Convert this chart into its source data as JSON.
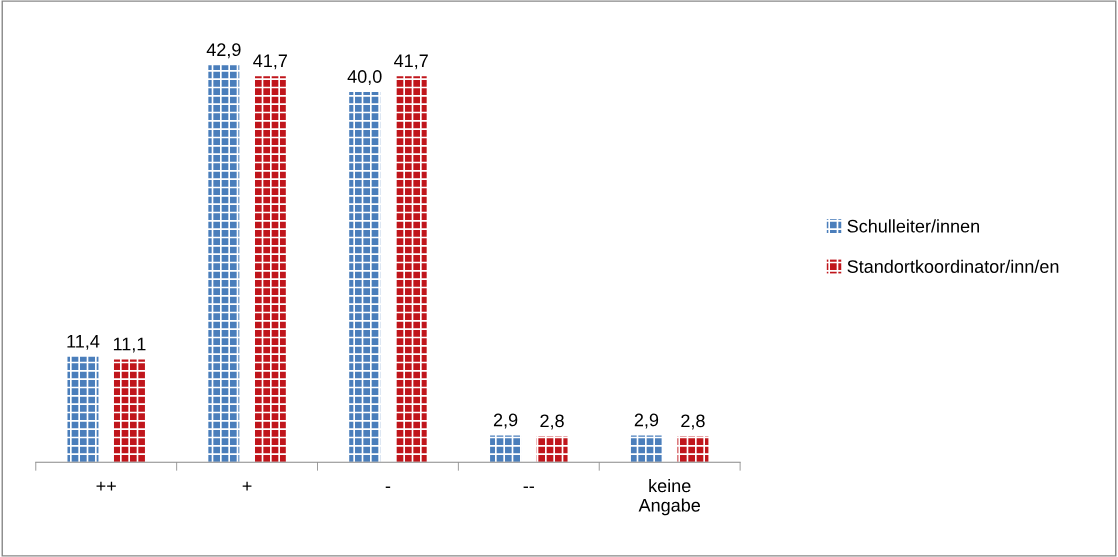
{
  "chart_data": {
    "type": "bar",
    "categories": [
      "++",
      "+",
      "-",
      "--",
      "keine Angabe"
    ],
    "series": [
      {
        "name": "Schulleiter/innen",
        "color": "#4a7ebb",
        "values": [
          11.4,
          42.9,
          40.0,
          2.9,
          2.9
        ],
        "value_labels": [
          "11,4",
          "42,9",
          "40,0",
          "2,9",
          "2,9"
        ]
      },
      {
        "name": "Standortkoordinator/inn/en",
        "color": "#c0151b",
        "values": [
          11.1,
          41.7,
          41.7,
          2.8,
          2.8
        ],
        "value_labels": [
          "11,1",
          "41,7",
          "41,7",
          "2,8",
          "2,8"
        ]
      }
    ],
    "legend": "right",
    "grid": false
  }
}
